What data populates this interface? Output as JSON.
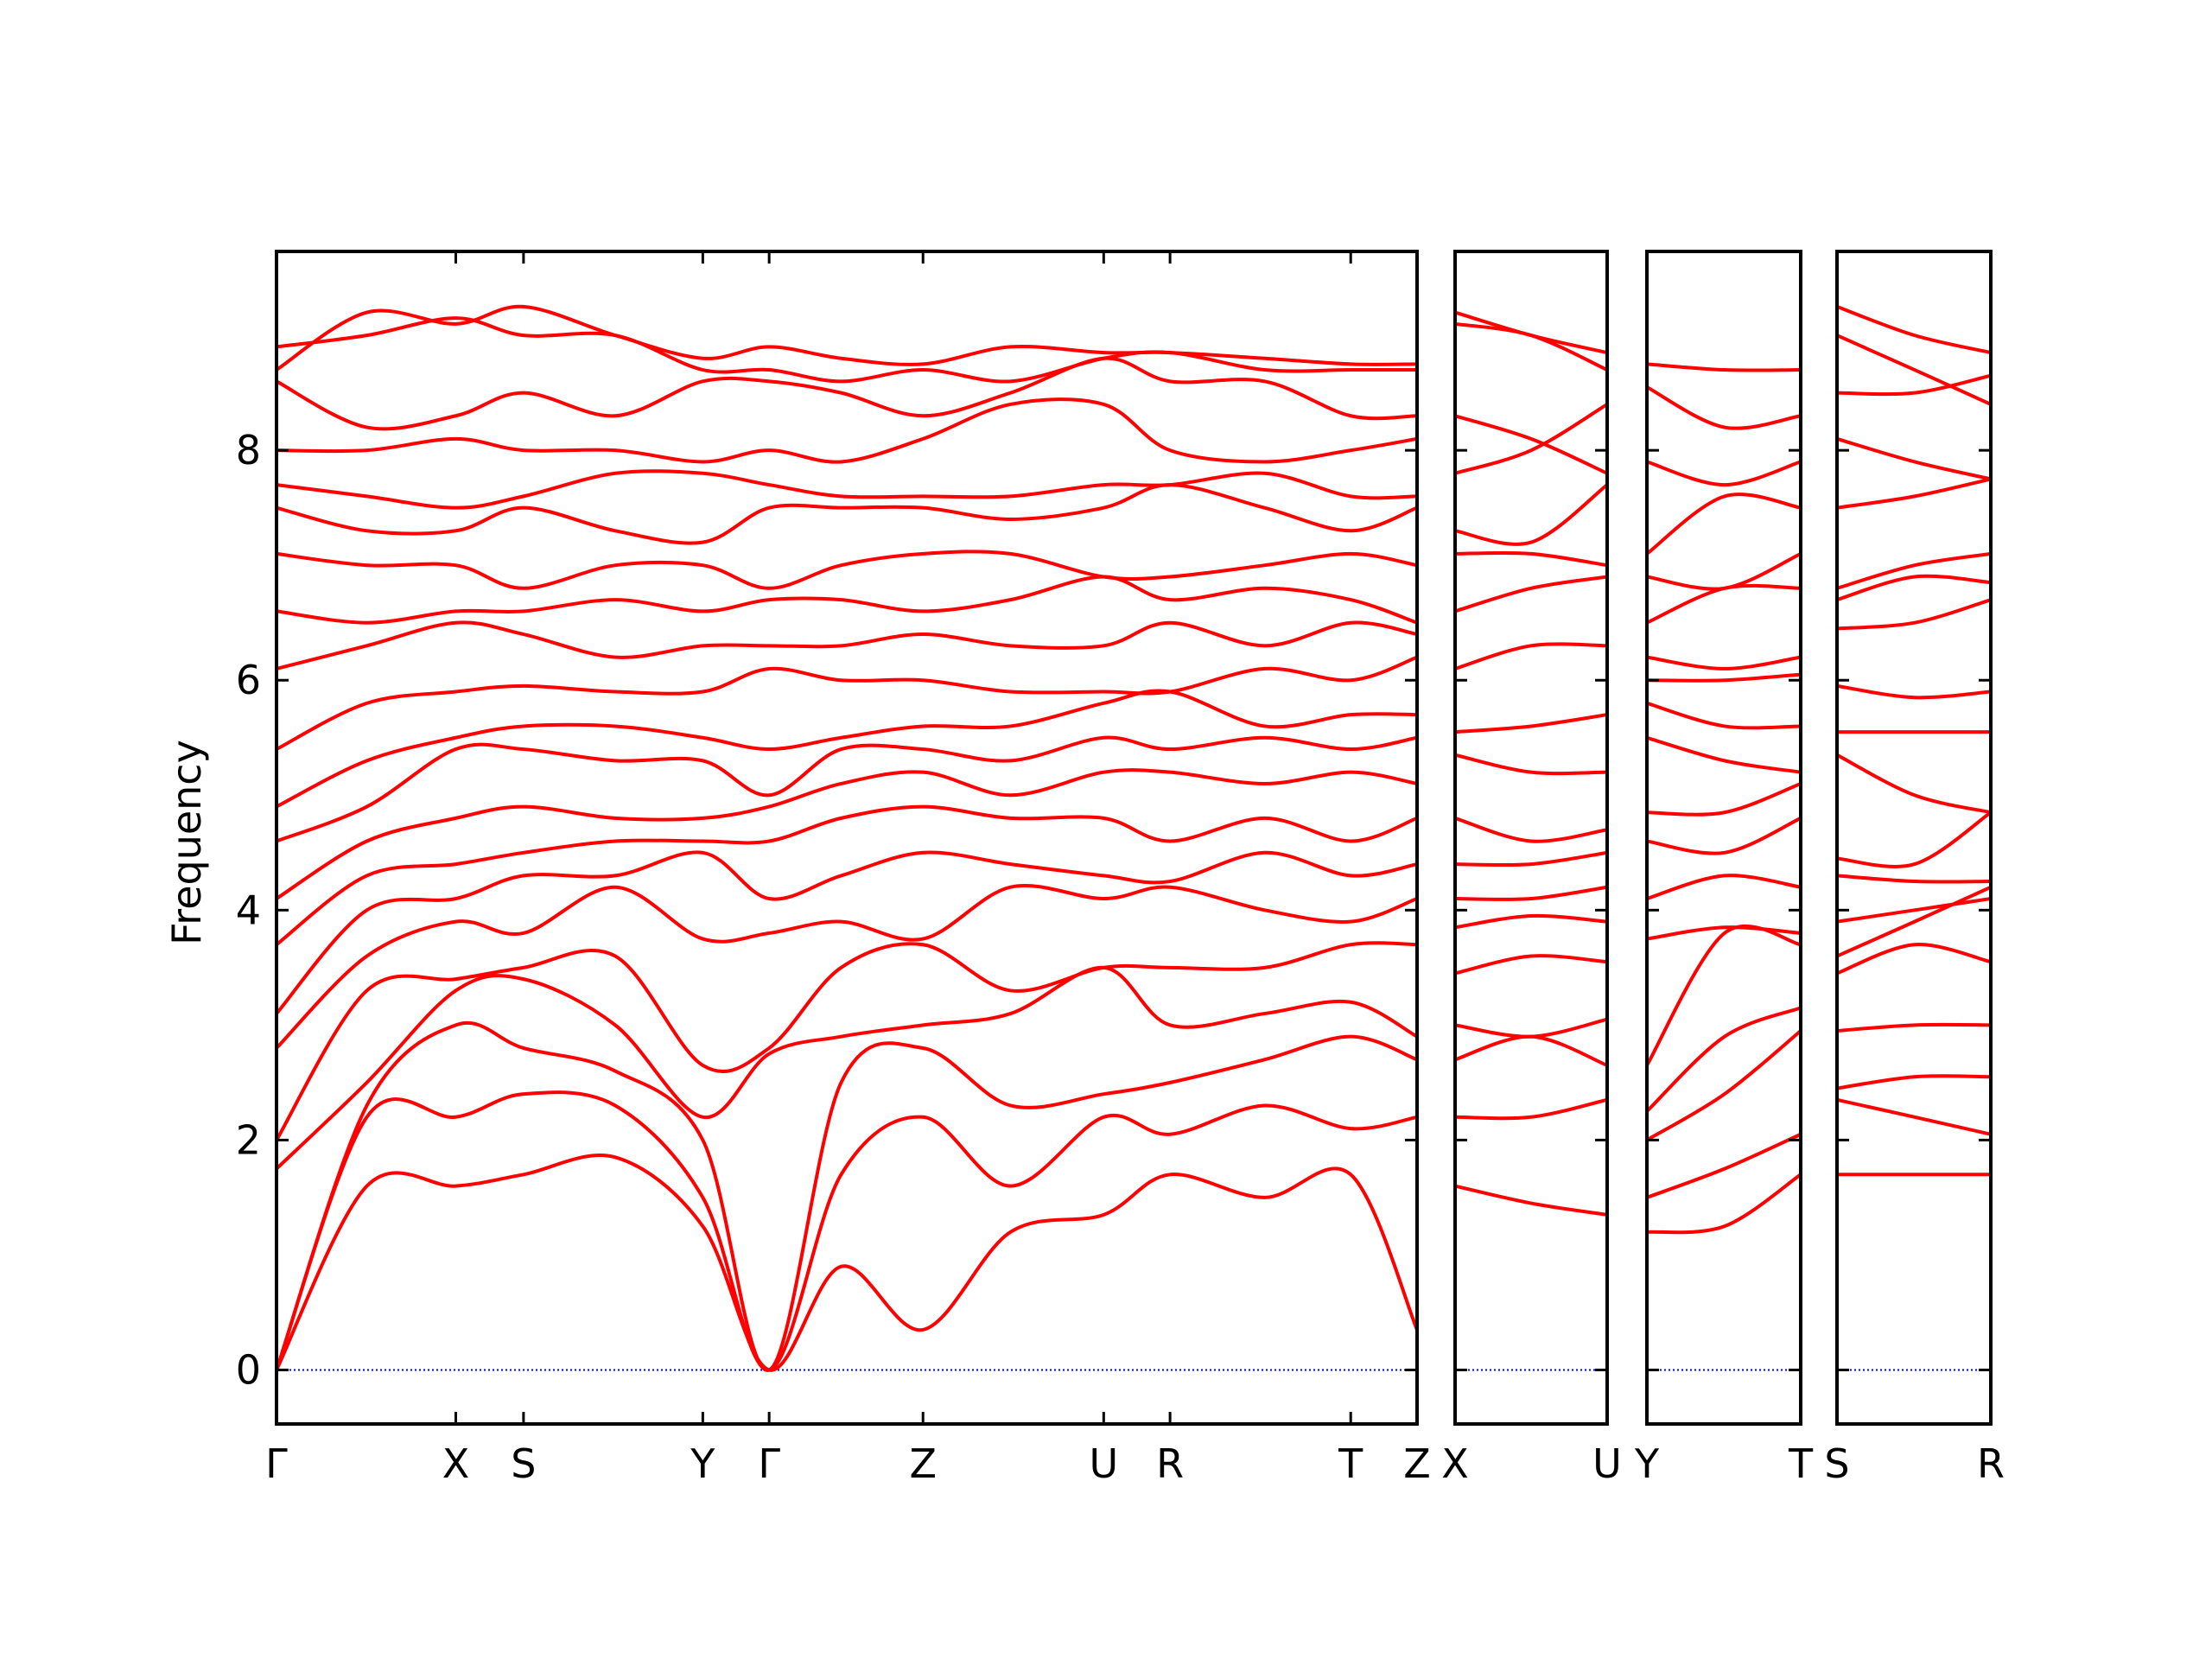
{
  "chart_data": [
    {
      "type": "line",
      "ylabel": "Frequency",
      "color": "#ff0000",
      "ylim": [
        -0.47,
        9.73
      ],
      "yticks": [
        0,
        2,
        4,
        6,
        8
      ],
      "ytick_labels": true,
      "hline": 0,
      "hline_color": "#0000ff",
      "xlim": [
        0,
        8.08
      ],
      "xticks": [
        {
          "value": 0,
          "label": "Γ"
        },
        {
          "value": 1.27,
          "label": "X"
        },
        {
          "value": 1.75,
          "label": "S"
        },
        {
          "value": 3.02,
          "label": "Y"
        },
        {
          "value": 3.49,
          "label": "Γ"
        },
        {
          "value": 4.58,
          "label": "Z"
        },
        {
          "value": 5.86,
          "label": "U"
        },
        {
          "value": 6.33,
          "label": "R"
        },
        {
          "value": 7.61,
          "label": "T"
        },
        {
          "value": 8.08,
          "label": "Z"
        }
      ],
      "x": [
        0,
        0.64,
        1.27,
        1.75,
        2.4,
        3.02,
        3.49,
        4.0,
        4.58,
        5.2,
        5.86,
        6.33,
        7.0,
        7.61,
        8.08
      ],
      "series": [
        {
          "values": [
            0,
            1.6,
            1.6,
            1.7,
            1.85,
            1.25,
            0,
            0.9,
            0.35,
            1.2,
            1.35,
            1.7,
            1.5,
            1.7,
            0.35
          ]
        },
        {
          "values": [
            0,
            2.2,
            2.2,
            2.4,
            2.3,
            1.5,
            0,
            1.7,
            2.2,
            1.6,
            2.2,
            2.05,
            2.3,
            2.1,
            2.2
          ]
        },
        {
          "values": [
            0,
            2.3,
            3.0,
            2.8,
            2.6,
            2.0,
            0,
            2.5,
            2.8,
            2.3,
            2.4,
            2.5,
            2.7,
            2.9,
            2.7
          ]
        },
        {
          "values": [
            1.75,
            2.5,
            3.3,
            3.4,
            3.0,
            2.2,
            2.75,
            2.9,
            3.0,
            3.1,
            3.5,
            3.0,
            3.1,
            3.2,
            2.9
          ]
        },
        {
          "values": [
            2.0,
            3.3,
            3.4,
            3.5,
            3.6,
            2.65,
            2.8,
            3.5,
            3.7,
            3.3,
            3.5,
            3.5,
            3.5,
            3.7,
            3.7
          ]
        },
        {
          "values": [
            2.8,
            3.6,
            3.9,
            3.8,
            4.2,
            3.75,
            3.8,
            3.9,
            3.75,
            4.2,
            4.1,
            4.2,
            4.0,
            3.9,
            4.1
          ]
        },
        {
          "values": [
            3.1,
            4.0,
            4.1,
            4.3,
            4.3,
            4.5,
            4.1,
            4.3,
            4.5,
            4.4,
            4.3,
            4.25,
            4.5,
            4.3,
            4.4
          ]
        },
        {
          "values": [
            3.7,
            4.3,
            4.4,
            4.5,
            4.6,
            4.6,
            4.6,
            4.8,
            4.9,
            4.8,
            4.8,
            4.6,
            4.8,
            4.6,
            4.8
          ]
        },
        {
          "values": [
            4.1,
            4.6,
            4.8,
            4.9,
            4.8,
            4.8,
            4.9,
            5.1,
            5.2,
            5.0,
            5.2,
            5.2,
            5.1,
            5.2,
            5.1
          ]
        },
        {
          "values": [
            4.6,
            4.9,
            5.4,
            5.4,
            5.3,
            5.3,
            5.0,
            5.4,
            5.4,
            5.3,
            5.5,
            5.4,
            5.5,
            5.4,
            5.5
          ]
        },
        {
          "values": [
            4.9,
            5.3,
            5.5,
            5.6,
            5.6,
            5.5,
            5.4,
            5.5,
            5.6,
            5.6,
            5.8,
            5.9,
            5.6,
            5.7,
            5.7
          ]
        },
        {
          "values": [
            5.4,
            5.8,
            5.9,
            5.95,
            5.9,
            5.9,
            6.1,
            6.0,
            6.0,
            5.9,
            5.9,
            5.9,
            6.1,
            6.0,
            6.2
          ]
        },
        {
          "values": [
            6.1,
            6.3,
            6.5,
            6.4,
            6.2,
            6.3,
            6.3,
            6.3,
            6.4,
            6.3,
            6.3,
            6.5,
            6.3,
            6.5,
            6.4
          ]
        },
        {
          "values": [
            6.6,
            6.5,
            6.6,
            6.6,
            6.7,
            6.6,
            6.7,
            6.7,
            6.6,
            6.7,
            6.9,
            6.7,
            6.8,
            6.7,
            6.5
          ]
        },
        {
          "values": [
            7.1,
            7.0,
            7.0,
            6.8,
            7.0,
            7.0,
            6.8,
            7.0,
            7.1,
            7.1,
            6.9,
            6.9,
            7.0,
            7.1,
            7.0
          ]
        },
        {
          "values": [
            7.5,
            7.3,
            7.3,
            7.5,
            7.3,
            7.2,
            7.5,
            7.5,
            7.5,
            7.4,
            7.5,
            7.7,
            7.5,
            7.3,
            7.5
          ]
        },
        {
          "values": [
            7.7,
            7.6,
            7.5,
            7.6,
            7.8,
            7.8,
            7.7,
            7.6,
            7.6,
            7.6,
            7.7,
            7.7,
            7.8,
            7.6,
            7.6
          ]
        },
        {
          "values": [
            8.0,
            8.0,
            8.1,
            8.0,
            8.0,
            7.9,
            8.0,
            7.9,
            8.1,
            8.4,
            8.4,
            8.0,
            7.9,
            8.0,
            8.1
          ]
        },
        {
          "values": [
            8.6,
            8.2,
            8.3,
            8.5,
            8.3,
            8.6,
            8.6,
            8.5,
            8.3,
            8.5,
            8.8,
            8.6,
            8.6,
            8.3,
            8.3
          ]
        },
        {
          "values": [
            8.9,
            9.0,
            9.15,
            9.0,
            9.0,
            8.7,
            8.7,
            8.6,
            8.7,
            8.6,
            8.8,
            8.85,
            8.7,
            8.7,
            8.7
          ]
        },
        {
          "values": [
            8.7,
            9.2,
            9.1,
            9.25,
            9.0,
            8.8,
            8.9,
            8.8,
            8.75,
            8.9,
            8.85,
            8.85,
            8.8,
            8.75,
            8.75
          ]
        }
      ]
    },
    {
      "type": "line",
      "color": "#ff0000",
      "ylim": [
        -0.47,
        9.73
      ],
      "yticks": [
        0,
        2,
        4,
        6,
        8
      ],
      "ytick_labels": false,
      "hline": 0,
      "hline_color": "#0000ff",
      "xlim": [
        0,
        1.08
      ],
      "xticks": [
        {
          "value": 0,
          "label": "X"
        },
        {
          "value": 1.08,
          "label": "U"
        }
      ],
      "x": [
        0,
        0.54,
        1.08
      ],
      "series": [
        {
          "values": [
            1.6,
            1.45,
            1.35
          ]
        },
        {
          "values": [
            2.2,
            2.2,
            2.35
          ]
        },
        {
          "values": [
            2.7,
            2.9,
            2.65
          ]
        },
        {
          "values": [
            3.0,
            2.9,
            3.05
          ]
        },
        {
          "values": [
            3.45,
            3.6,
            3.55
          ]
        },
        {
          "values": [
            3.85,
            3.95,
            3.9
          ]
        },
        {
          "values": [
            4.1,
            4.1,
            4.2
          ]
        },
        {
          "values": [
            4.4,
            4.4,
            4.5
          ]
        },
        {
          "values": [
            4.8,
            4.6,
            4.7
          ]
        },
        {
          "values": [
            5.35,
            5.2,
            5.2
          ]
        },
        {
          "values": [
            5.55,
            5.6,
            5.7
          ]
        },
        {
          "values": [
            6.1,
            6.3,
            6.3
          ]
        },
        {
          "values": [
            6.6,
            6.8,
            6.9
          ]
        },
        {
          "values": [
            7.1,
            7.1,
            7.0
          ]
        },
        {
          "values": [
            7.3,
            7.2,
            7.7
          ]
        },
        {
          "values": [
            7.8,
            8.0,
            8.4
          ]
        },
        {
          "values": [
            8.3,
            8.1,
            7.8
          ]
        },
        {
          "values": [
            9.1,
            9.0,
            8.7
          ]
        },
        {
          "values": [
            9.2,
            9.0,
            8.85
          ]
        }
      ]
    },
    {
      "type": "line",
      "color": "#ff0000",
      "ylim": [
        -0.47,
        9.73
      ],
      "yticks": [
        0,
        2,
        4,
        6,
        8
      ],
      "ytick_labels": false,
      "hline": 0,
      "hline_color": "#0000ff",
      "xlim": [
        0,
        1.09
      ],
      "xticks": [
        {
          "value": 0,
          "label": "Y"
        },
        {
          "value": 1.09,
          "label": "T"
        }
      ],
      "x": [
        0,
        0.55,
        1.09
      ],
      "series": [
        {
          "values": [
            1.2,
            1.25,
            1.7
          ]
        },
        {
          "values": [
            1.5,
            1.75,
            2.05
          ]
        },
        {
          "values": [
            2.0,
            2.4,
            2.95
          ]
        },
        {
          "values": [
            2.25,
            2.9,
            3.15
          ]
        },
        {
          "values": [
            2.65,
            3.8,
            3.7
          ]
        },
        {
          "values": [
            3.75,
            3.85,
            3.8
          ]
        },
        {
          "values": [
            4.1,
            4.3,
            4.2
          ]
        },
        {
          "values": [
            4.6,
            4.5,
            4.8
          ]
        },
        {
          "values": [
            4.85,
            4.85,
            5.1
          ]
        },
        {
          "values": [
            5.5,
            5.3,
            5.2
          ]
        },
        {
          "values": [
            5.8,
            5.6,
            5.6
          ]
        },
        {
          "values": [
            6.0,
            6.0,
            6.05
          ]
        },
        {
          "values": [
            6.2,
            6.1,
            6.2
          ]
        },
        {
          "values": [
            6.5,
            6.8,
            6.8
          ]
        },
        {
          "values": [
            6.9,
            6.8,
            7.1
          ]
        },
        {
          "values": [
            7.1,
            7.6,
            7.5
          ]
        },
        {
          "values": [
            7.9,
            7.7,
            7.9
          ]
        },
        {
          "values": [
            8.55,
            8.2,
            8.3
          ]
        },
        {
          "values": [
            8.75,
            8.7,
            8.7
          ]
        }
      ]
    },
    {
      "type": "line",
      "color": "#ff0000",
      "ylim": [
        -0.47,
        9.73
      ],
      "yticks": [
        0,
        2,
        4,
        6,
        8
      ],
      "ytick_labels": false,
      "hline": 0,
      "hline_color": "#0000ff",
      "xlim": [
        0,
        1.09
      ],
      "xticks": [
        {
          "value": 0,
          "label": "S"
        },
        {
          "value": 1.09,
          "label": "R"
        }
      ],
      "x": [
        0,
        0.55,
        1.09
      ],
      "series": [
        {
          "values": [
            1.7,
            1.7,
            1.7
          ]
        },
        {
          "values": [
            2.35,
            2.2,
            2.05
          ]
        },
        {
          "values": [
            2.45,
            2.55,
            2.55
          ]
        },
        {
          "values": [
            2.95,
            3.0,
            3.0
          ]
        },
        {
          "values": [
            3.45,
            3.7,
            3.55
          ]
        },
        {
          "values": [
            3.6,
            3.9,
            4.2
          ]
        },
        {
          "values": [
            3.9,
            4.0,
            4.1
          ]
        },
        {
          "values": [
            4.3,
            4.25,
            4.25
          ]
        },
        {
          "values": [
            4.45,
            4.4,
            4.85
          ]
        },
        {
          "values": [
            5.35,
            5.0,
            4.85
          ]
        },
        {
          "values": [
            5.55,
            5.55,
            5.55
          ]
        },
        {
          "values": [
            5.95,
            5.85,
            5.9
          ]
        },
        {
          "values": [
            6.45,
            6.5,
            6.7
          ]
        },
        {
          "values": [
            6.7,
            6.9,
            6.85
          ]
        },
        {
          "values": [
            6.8,
            7.0,
            7.1
          ]
        },
        {
          "values": [
            7.5,
            7.6,
            7.75
          ]
        },
        {
          "values": [
            8.1,
            7.9,
            7.75
          ]
        },
        {
          "values": [
            8.5,
            8.5,
            8.65
          ]
        },
        {
          "values": [
            9.0,
            8.7,
            8.4
          ]
        },
        {
          "values": [
            9.25,
            9.0,
            8.85
          ]
        }
      ]
    }
  ]
}
